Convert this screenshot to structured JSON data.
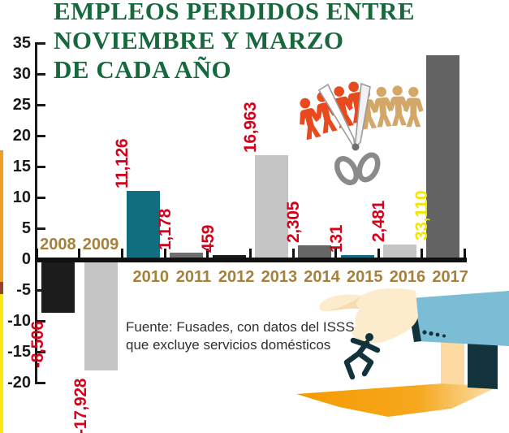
{
  "title": {
    "lines": [
      "EMPLEOS PERDIDOS ENTRE",
      "NOVIEMBRE Y MARZO",
      "DE CADA AÑO"
    ],
    "color": "#17693D"
  },
  "source": {
    "line1": "Fuente: Fusades, con datos del ISSS",
    "line2": "que excluye servicios domésticos"
  },
  "chart_data": {
    "type": "bar",
    "title": "EMPLEOS PERDIDOS ENTRE NOVIEMBRE Y MARZO DE CADA AÑO",
    "ylabel": "",
    "xlabel": "",
    "axis_unit": "thousands of jobs",
    "ylim": [
      -20,
      35
    ],
    "grid": false,
    "ytick_labels": [
      "35",
      "30",
      "25",
      "20",
      "15",
      "10",
      "5",
      "0",
      "-5",
      "-10",
      "-15",
      "-20"
    ],
    "categories": [
      "2008",
      "2009",
      "2010",
      "2011",
      "2012",
      "2013",
      "2014",
      "2015",
      "2016",
      "2017"
    ],
    "values": [
      -8506,
      -17928,
      11126,
      1178,
      459,
      16963,
      2305,
      131,
      2481,
      33110
    ],
    "bars": [
      {
        "year": "2008",
        "value": -8506,
        "label": "-8,506",
        "color": "#1C1C1C",
        "label_color": "#D50019"
      },
      {
        "year": "2009",
        "value": -17928,
        "label": "-17,928",
        "color": "#C5C5C5",
        "label_color": "#D50019"
      },
      {
        "year": "2010",
        "value": 11126,
        "label": "11,126",
        "color": "#106E7F",
        "label_color": "#D50019"
      },
      {
        "year": "2011",
        "value": 1178,
        "label": "1,178",
        "color": "#6E6E6E",
        "label_color": "#D50019"
      },
      {
        "year": "2012",
        "value": 459,
        "label": "459",
        "color": "#1C1C1C",
        "label_color": "#D50019"
      },
      {
        "year": "2013",
        "value": 16963,
        "label": "16,963",
        "color": "#C5C5C5",
        "label_color": "#D50019"
      },
      {
        "year": "2014",
        "value": 2305,
        "label": "2,305",
        "color": "#666666",
        "label_color": "#D50019"
      },
      {
        "year": "2015",
        "value": 131,
        "label": "131",
        "color": "#106E7F",
        "label_color": "#D50019"
      },
      {
        "year": "2016",
        "value": 2481,
        "label": "2,481",
        "color": "#C5C5C5",
        "label_color": "#D50019"
      },
      {
        "year": "2017",
        "value": 33110,
        "label": "33,110",
        "color": "#636363",
        "label_color": "#F2E600",
        "label_inside": true
      }
    ]
  },
  "colors": {
    "title_green": "#17693D",
    "year_brown": "#A5813C",
    "value_red": "#D50019",
    "value_yellow": "#F2E600",
    "teal_bar": "#106E7F",
    "strip_orange": "#F0A028",
    "strip_maroon": "#93422B",
    "strip_yellow": "#FFE90C",
    "figure_red": "#E8491D",
    "figure_tan": "#D3A768",
    "scissors_gray": "#8A8A8A",
    "sleeve_blue": "#7CBDD6",
    "suit_navy": "#12333C",
    "hand_cream": "#FCECCC",
    "floor_orange": "#F59A00",
    "door_tan": "#FBD9A1"
  },
  "decor": {
    "icons": [
      "paper-doll-chain-icon",
      "scissors-icon",
      "hand-dropping-worker-icon",
      "doorway-icon"
    ]
  }
}
